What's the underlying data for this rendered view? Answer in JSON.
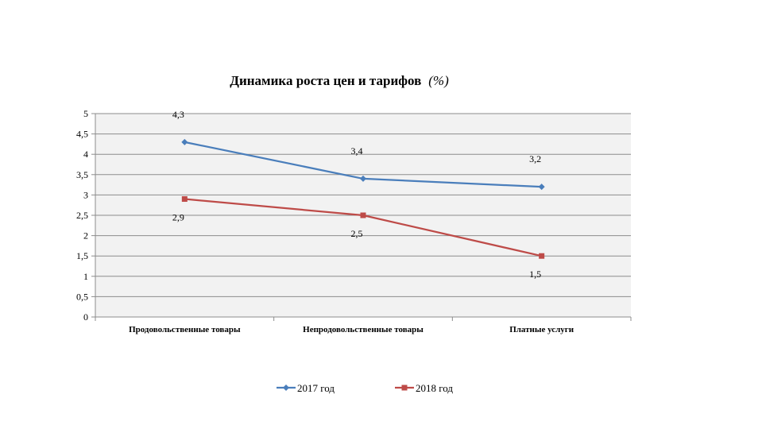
{
  "chart_data": {
    "type": "line",
    "title": "Динамика роста цен и тарифов",
    "title_unit": "(%)",
    "xlabel": "",
    "ylabel": "",
    "categories": [
      "Продовольственные товары",
      "Непродовольственные товары",
      "Платные услуги"
    ],
    "ylim": [
      0,
      5
    ],
    "yticks": [
      "0",
      "0,5",
      "1",
      "1,5",
      "2",
      "2,5",
      "3",
      "3,5",
      "4",
      "4,5",
      "5"
    ],
    "grid": true,
    "legend_position": "bottom",
    "series": [
      {
        "name": "2017 год",
        "values": [
          4.3,
          3.4,
          3.2
        ],
        "labels": [
          "4,3",
          "3,4",
          "3,2"
        ],
        "color": "#4a7ebb",
        "marker": "diamond"
      },
      {
        "name": "2018 год",
        "values": [
          2.9,
          2.5,
          1.5
        ],
        "labels": [
          "2,9",
          "2,5",
          "1,5"
        ],
        "color": "#be4b48",
        "marker": "square"
      }
    ]
  }
}
